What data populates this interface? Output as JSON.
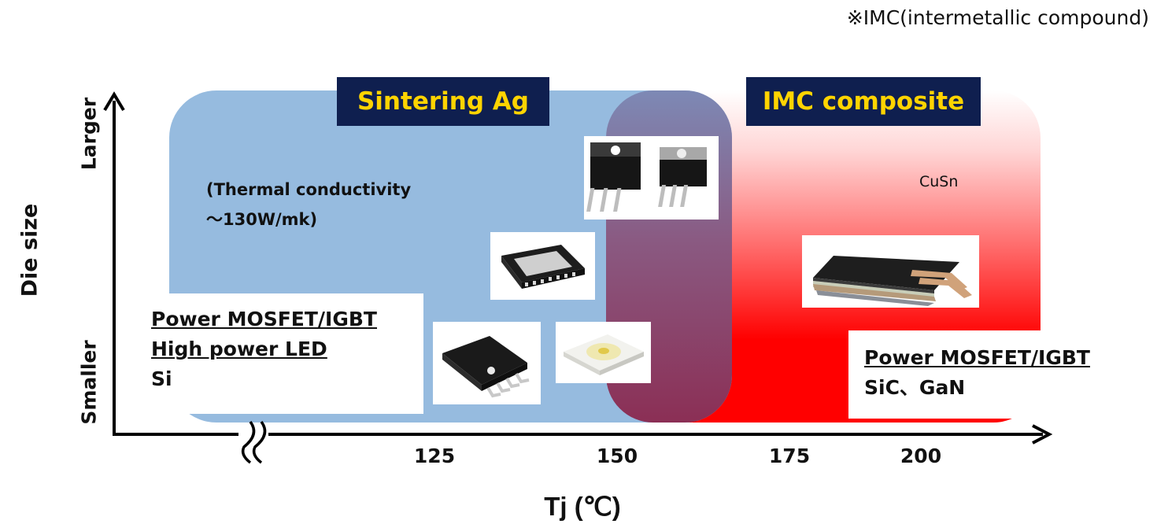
{
  "footnote": "※IMC(intermetallic compound)",
  "regions": {
    "sintering_ag": {
      "title": "Sintering Ag",
      "property_line1": "(Thermal conductivity",
      "property_line2": "～130W/mk)",
      "color": "#96bbdf",
      "title_bg": "#0f1f4f",
      "title_color": "#ffd400"
    },
    "imc_composite": {
      "title": "IMC composite",
      "material": "CuSn",
      "color": "#ff0000"
    },
    "overlap_color": "#8b2f55"
  },
  "applications": {
    "left": {
      "line1": "Power MOSFET/IGBT",
      "line2": "High power LED",
      "line3": "Si"
    },
    "right": {
      "line1": "Power MOSFET/IGBT",
      "line2": "SiC、GaN"
    }
  },
  "axes": {
    "x_title": "Tj (℃)",
    "x_ticks": [
      "125",
      "150",
      "175",
      "200"
    ],
    "y_title": "Die size",
    "y_low": "Smaller",
    "y_high": "Larger"
  },
  "package_icons": [
    "to220-package-icon",
    "qfn-package-icon",
    "sop-package-icon",
    "led-package-icon",
    "stacked-module-icon"
  ]
}
